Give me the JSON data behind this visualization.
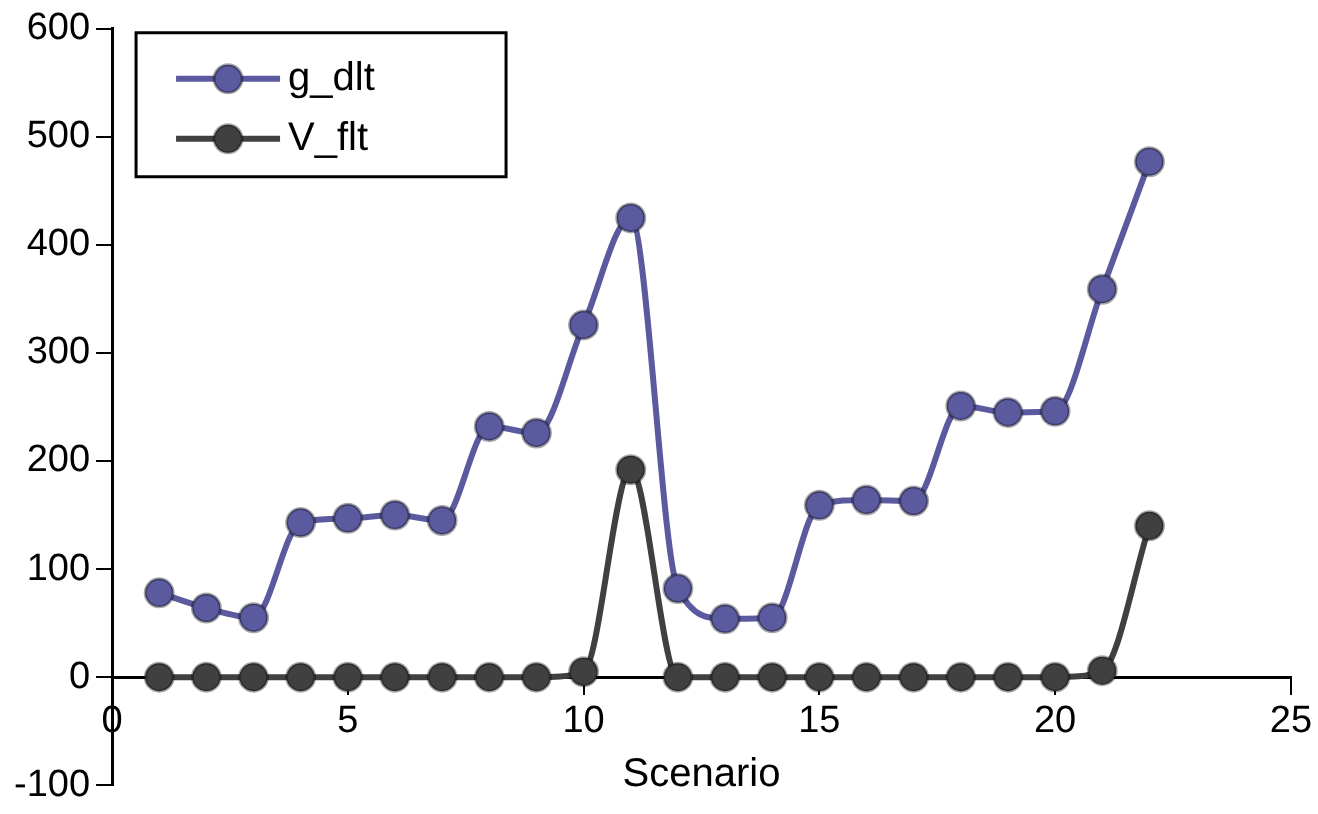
{
  "chart_data": {
    "type": "line",
    "xlabel": "Scenario",
    "x": [
      1,
      2,
      3,
      4,
      5,
      6,
      7,
      8,
      9,
      10,
      11,
      12,
      13,
      14,
      15,
      16,
      17,
      18,
      19,
      20,
      21,
      22
    ],
    "series": [
      {
        "name": "g_dlt",
        "color": "#5b5a9e",
        "values": [
          78,
          64,
          55,
          143,
          147,
          150,
          145,
          232,
          226,
          326,
          425,
          82,
          54,
          55,
          159,
          164,
          163,
          251,
          245,
          246,
          359,
          477
        ]
      },
      {
        "name": "V_flt",
        "color": "#404040",
        "values": [
          0,
          0,
          0,
          0,
          0,
          0,
          0,
          0,
          0,
          5,
          192,
          0,
          0,
          0,
          0,
          0,
          0,
          0,
          0,
          0,
          6,
          140
        ]
      }
    ],
    "xlim": [
      0,
      25
    ],
    "xticks": [
      0,
      5,
      10,
      15,
      20,
      25
    ],
    "ylim": [
      -100,
      600
    ],
    "yticks": [
      -100,
      0,
      100,
      200,
      300,
      400,
      500,
      600
    ],
    "grid": false,
    "legend": "top left",
    "marker": "circle",
    "line_style": "solid"
  }
}
